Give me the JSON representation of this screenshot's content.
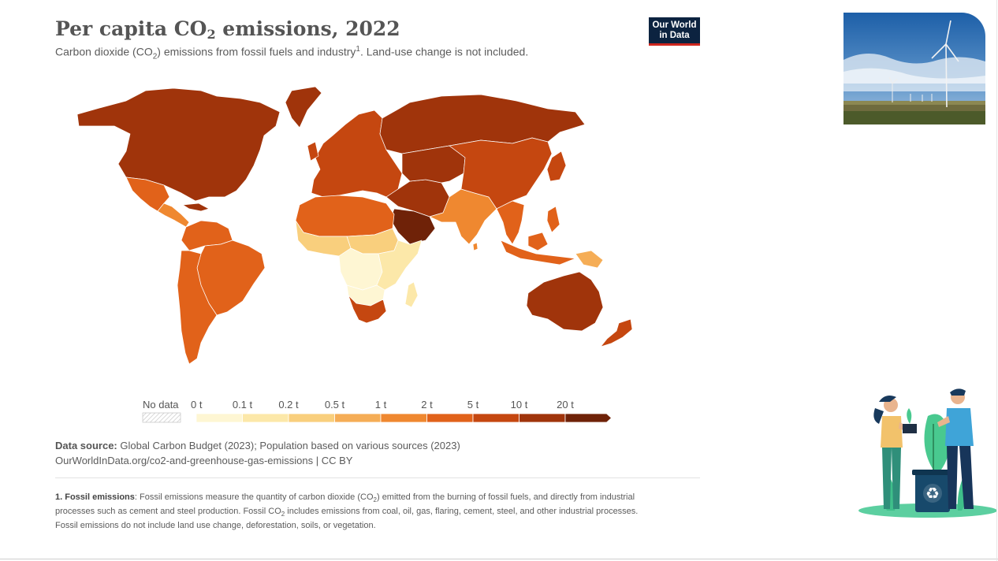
{
  "header": {
    "title_pre": "Per capita CO",
    "title_sub": "2",
    "title_post": " emissions, 2022",
    "subtitle_pre": "Carbon dioxide (CO",
    "subtitle_sub": "2",
    "subtitle_mid": ") emissions from fossil fuels and industry",
    "subtitle_sup": "1",
    "subtitle_post": ". Land-use change is not included."
  },
  "logo": {
    "line1": "Our World",
    "line2": "in Data",
    "bg": "#0c2340",
    "accent": "#ce261e"
  },
  "chart_data": {
    "type": "choropleth",
    "year": 2022,
    "unit": "t",
    "legend": {
      "no_data_label": "No data",
      "bins": [
        "0 t",
        "0.1 t",
        "0.2 t",
        "0.5 t",
        "1 t",
        "2 t",
        "5 t",
        "10 t",
        "20 t"
      ],
      "colors": [
        "#fef6d3",
        "#fce8a9",
        "#f9cf7d",
        "#f5ad56",
        "#ef8830",
        "#e1621a",
        "#c54710",
        "#a0340b",
        "#6f2208"
      ]
    },
    "regions": [
      {
        "name": "North America",
        "bin": 7
      },
      {
        "name": "Greenland",
        "bin": 7
      },
      {
        "name": "Mexico",
        "bin": 5
      },
      {
        "name": "Central America",
        "bin": 4
      },
      {
        "name": "South America North",
        "bin": 5
      },
      {
        "name": "Brazil",
        "bin": 5
      },
      {
        "name": "Southern Cone",
        "bin": 5
      },
      {
        "name": "Europe",
        "bin": 6
      },
      {
        "name": "Russia",
        "bin": 7
      },
      {
        "name": "Middle East",
        "bin": 7
      },
      {
        "name": "Arabian Peninsula",
        "bin": 8
      },
      {
        "name": "North Africa",
        "bin": 5
      },
      {
        "name": "West Africa",
        "bin": 2
      },
      {
        "name": "Central Africa",
        "bin": 0
      },
      {
        "name": "East Africa",
        "bin": 1
      },
      {
        "name": "Southern Africa",
        "bin": 6
      },
      {
        "name": "South Asia",
        "bin": 4
      },
      {
        "name": "China",
        "bin": 6
      },
      {
        "name": "Southeast Asia",
        "bin": 5
      },
      {
        "name": "Japan & Korea",
        "bin": 6
      },
      {
        "name": "Australia",
        "bin": 7
      },
      {
        "name": "New Zealand",
        "bin": 6
      },
      {
        "name": "Papua New Guinea",
        "bin": 3
      }
    ]
  },
  "source": {
    "label": "Data source:",
    "text": " Global Carbon Budget (2023); Population based on various sources (2023)",
    "url_line": "OurWorldInData.org/co2-and-greenhouse-gas-emissions | CC BY"
  },
  "footnote": {
    "label": "1. Fossil emissions",
    "text_a": ": Fossil emissions measure the quantity of carbon dioxide (CO",
    "sub_a": "2",
    "text_b": ") emitted from the burning of fossil fuels, and directly from industrial processes such as cement and steel production. Fossil CO",
    "sub_b": "2",
    "text_c": " includes emissions from coal, oil, gas, flaring, cement, steel, and other industrial processes. Fossil emissions do not include land use change, deforestation, soils, or vegetation."
  },
  "icons": {
    "photo": "wind-turbine-photo",
    "illustration": "people-planting-recycle-illustration",
    "recycle": "recycle-icon"
  }
}
